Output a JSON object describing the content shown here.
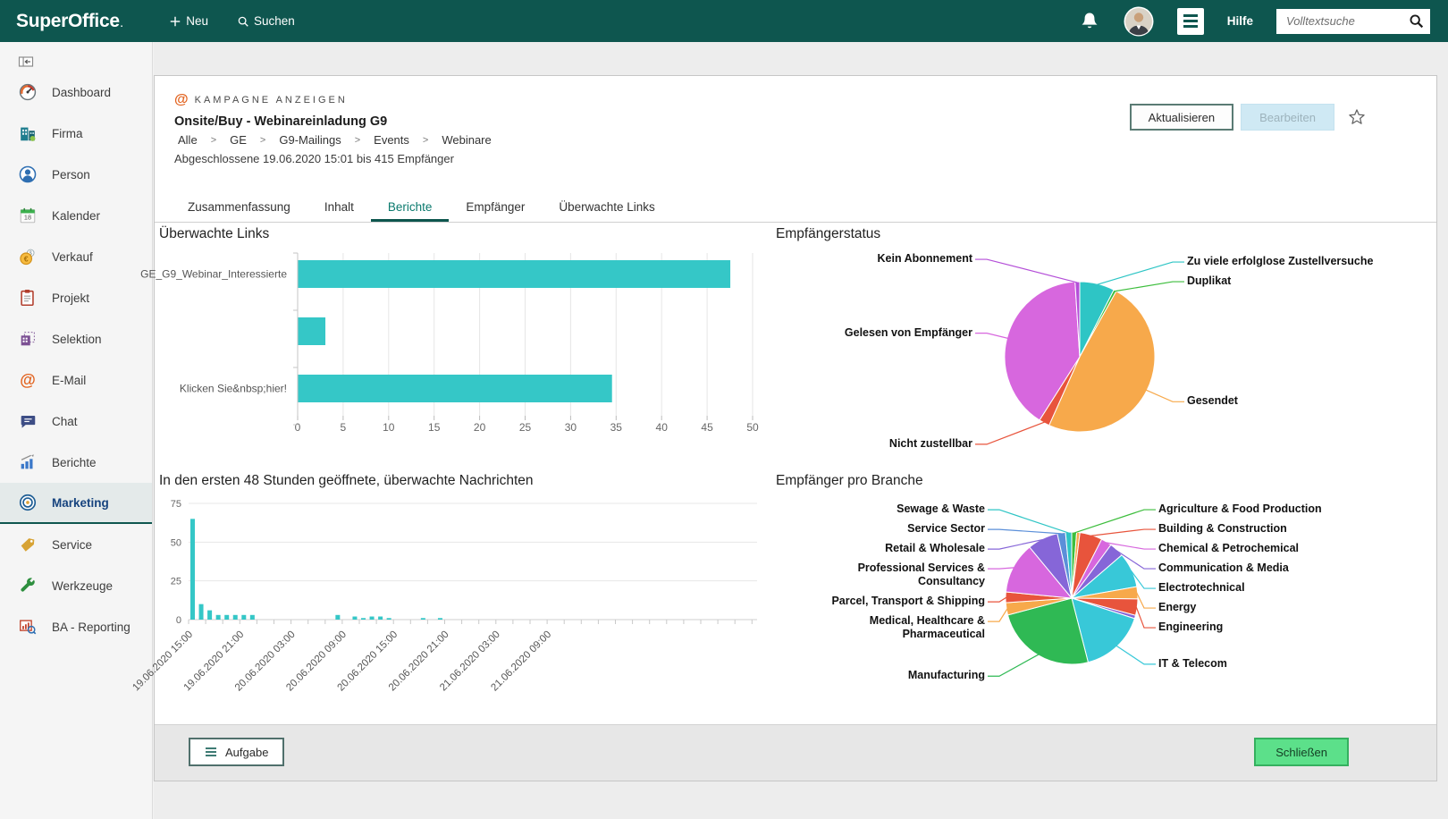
{
  "topbar": {
    "brand": "SuperOffice",
    "brand_mark": ".",
    "new_label": "Neu",
    "search_label": "Suchen",
    "help_label": "Hilfe",
    "fulltext_placeholder": "Volltextsuche"
  },
  "icons": {
    "at": "@",
    "euro": "€",
    "dollar": "$"
  },
  "sidebar": {
    "calendar_day": "18",
    "items": [
      {
        "id": "dashboard",
        "label": "Dashboard"
      },
      {
        "id": "firma",
        "label": "Firma"
      },
      {
        "id": "person",
        "label": "Person"
      },
      {
        "id": "kalender",
        "label": "Kalender"
      },
      {
        "id": "verkauf",
        "label": "Verkauf"
      },
      {
        "id": "projekt",
        "label": "Projekt"
      },
      {
        "id": "selektion",
        "label": "Selektion"
      },
      {
        "id": "email",
        "label": "E-Mail"
      },
      {
        "id": "chat",
        "label": "Chat"
      },
      {
        "id": "berichte",
        "label": "Berichte"
      },
      {
        "id": "marketing",
        "label": "Marketing",
        "active": true
      },
      {
        "id": "service",
        "label": "Service"
      },
      {
        "id": "werkzeuge",
        "label": "Werkzeuge"
      },
      {
        "id": "ba-reporting",
        "label": "BA - Reporting"
      }
    ]
  },
  "campaign": {
    "kicker": "KAMPAGNE ANZEIGEN",
    "title": "Onsite/Buy - Webinareinladung G9",
    "breadcrumb": [
      "Alle",
      "GE",
      "G9-Mailings",
      "Events",
      "Webinare"
    ],
    "breadcrumb_separator": ">",
    "status": "Abgeschlossene 19.06.2020 15:01 bis 415 Empfänger",
    "update_button": "Aktualisieren",
    "edit_button": "Bearbeiten"
  },
  "tabs": {
    "items": [
      "Zusammenfassung",
      "Inhalt",
      "Berichte",
      "Empfänger",
      "Überwachte Links"
    ],
    "active": "Berichte"
  },
  "footer": {
    "task_button": "Aufgabe",
    "close_button": "Schließen"
  },
  "chart_data": [
    {
      "id": "tracked_links",
      "type": "bar",
      "orientation": "horizontal",
      "title": "Überwachte Links",
      "categories": [
        "GE_G9_Webinar_Interessierte",
        "",
        "Klicken Sie&nbsp;hier!"
      ],
      "values": [
        47.5,
        3,
        34.5
      ],
      "xlim": [
        0,
        50
      ],
      "xticks": [
        0,
        5,
        10,
        15,
        20,
        25,
        30,
        35,
        40,
        45,
        50
      ],
      "grid": true,
      "bar_color": "#35C7C7"
    },
    {
      "id": "recipient_status",
      "type": "pie",
      "title": "Empfängerstatus",
      "slices": [
        {
          "label": "Zu viele erfolglose Zustellversuche",
          "value": 7.5,
          "color": "#2EC5C5"
        },
        {
          "label": "Duplikat",
          "value": 0.6,
          "color": "#3DBE3D"
        },
        {
          "label": "Gesendet",
          "value": 48.6,
          "color": "#F7A94B"
        },
        {
          "label": "Nicht zustellbar",
          "value": 2.3,
          "color": "#E8543C"
        },
        {
          "label": "Gelesen von Empfänger",
          "value": 40.0,
          "color": "#D767DE"
        },
        {
          "label": "Kein Abonnement",
          "value": 1.0,
          "color": "#B44FD8"
        }
      ]
    },
    {
      "id": "opened_48h",
      "type": "bar",
      "orientation": "vertical",
      "title": "In den ersten 48 Stunden geöffnete, überwachte Nachrichten",
      "values": [
        65,
        10,
        6,
        3,
        3,
        3,
        3,
        3,
        0,
        0,
        0,
        0,
        0,
        0,
        0,
        0,
        0,
        3,
        0,
        2,
        1,
        2,
        2,
        1,
        0,
        0,
        0,
        1,
        0,
        1,
        0,
        0,
        0,
        0,
        0,
        0,
        0,
        0,
        0,
        0,
        0,
        0,
        0,
        0,
        0,
        0,
        0,
        0
      ],
      "ylim": [
        0,
        75
      ],
      "yticks": [
        0,
        25,
        50,
        75
      ],
      "x_tick_labels": [
        "19.06.2020 15:00",
        "19.06.2020 21:00",
        "20.06.2020 03:00",
        "20.06.2020 09:00",
        "20.06.2020 15:00",
        "20.06.2020 21:00",
        "21.06.2020 03:00",
        "21.06.2020 09:00"
      ],
      "label_every": 6,
      "grid": true,
      "bar_color": "#35C7C7"
    },
    {
      "id": "recipients_by_industry",
      "type": "pie",
      "title": "Empfänger pro Branche",
      "slices": [
        {
          "label": "Agriculture & Food Production",
          "value": 1.2,
          "color": "#3DBE3D"
        },
        {
          "label": "",
          "value": 0.8,
          "color": "#F7A94B"
        },
        {
          "label": "Building & Construction",
          "value": 5.5,
          "color": "#E8543C"
        },
        {
          "label": "Chemical & Petrochemical",
          "value": 2.6,
          "color": "#D767DE"
        },
        {
          "label": "Communication & Media",
          "value": 3.6,
          "color": "#8666D8"
        },
        {
          "label": "Electrotechnical",
          "value": 8.5,
          "color": "#38C8D8"
        },
        {
          "label": "Energy",
          "value": 3.0,
          "color": "#F7A94B"
        },
        {
          "label": "Engineering",
          "value": 4.0,
          "color": "#E8543C"
        },
        {
          "label": "",
          "value": 0.8,
          "color": "#8666D8"
        },
        {
          "label": "IT & Telecom",
          "value": 16.0,
          "color": "#38C8D8"
        },
        {
          "label": "Manufacturing",
          "value": 24.9,
          "color": "#2FB954"
        },
        {
          "label": "Medical, Healthcare & Pharmaceutical",
          "value": 3.0,
          "color": "#F7A94B"
        },
        {
          "label": "Parcel, Transport & Shipping",
          "value": 2.6,
          "color": "#E8543C"
        },
        {
          "label": "Professional Services & Consultancy",
          "value": 12.5,
          "color": "#D767DE"
        },
        {
          "label": "Retail & Wholesale",
          "value": 7.5,
          "color": "#8666D8"
        },
        {
          "label": "Service Sector",
          "value": 2.0,
          "color": "#5B8FD9"
        },
        {
          "label": "Sewage & Waste",
          "value": 1.5,
          "color": "#2EC5C5"
        }
      ]
    }
  ],
  "colors": {
    "topbar": "#0E564F",
    "accent_teal": "#0b7a6e",
    "bar_teal": "#35C7C7",
    "close_green": "#5CE08A",
    "active_item_blue": "#16437E"
  }
}
